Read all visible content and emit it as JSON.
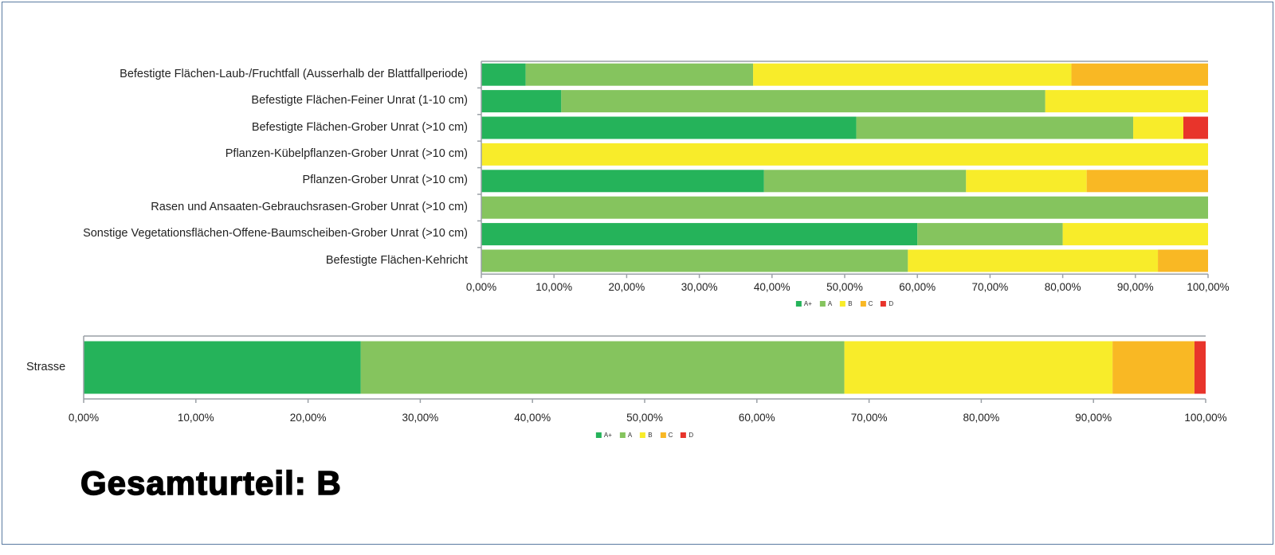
{
  "colors": {
    "A+": "#25b35a",
    "A": "#85c45e",
    "B": "#f8ec2a",
    "C": "#f9b824",
    "D": "#e8342b"
  },
  "chart_data": [
    {
      "type": "bar",
      "orientation": "horizontal-stacked-100",
      "categories": [
        "Befestigte Flächen-Laub-/Fruchtfall (Ausserhalb der Blattfallperiode)",
        "Befestigte Flächen-Feiner Unrat (1-10 cm)",
        "Befestigte Flächen-Grober Unrat (>10 cm)",
        "Pflanzen-Kübelpflanzen-Grober Unrat (>10 cm)",
        "Pflanzen-Grober Unrat (>10 cm)",
        "Rasen und Ansaaten-Gebrauchsrasen-Grober Unrat (>10 cm)",
        "Sonstige Vegetationsflächen-Offene-Baumscheiben-Grober Unrat (>10 cm)",
        "Befestigte Flächen-Kehricht"
      ],
      "series": [
        {
          "name": "A+",
          "values": [
            6.1,
            11.0,
            51.6,
            0,
            38.9,
            0,
            60.0,
            0
          ]
        },
        {
          "name": "A",
          "values": [
            31.3,
            66.6,
            38.1,
            0,
            27.8,
            100,
            20.0,
            58.7
          ]
        },
        {
          "name": "B",
          "values": [
            43.8,
            22.4,
            6.9,
            100,
            16.6,
            0,
            20.0,
            34.4
          ]
        },
        {
          "name": "C",
          "values": [
            18.8,
            0,
            0,
            0,
            16.7,
            0,
            0,
            6.9
          ]
        },
        {
          "name": "D",
          "values": [
            0,
            0,
            3.4,
            0,
            0,
            0,
            0,
            0
          ]
        }
      ],
      "xticks": [
        "0,00%",
        "10,00%",
        "20,00%",
        "30,00%",
        "40,00%",
        "50,00%",
        "60,00%",
        "70,00%",
        "80,00%",
        "90,00%",
        "100,00%"
      ],
      "xlim": [
        0,
        100
      ],
      "legend": [
        "A+",
        "A",
        "B",
        "C",
        "D"
      ],
      "legend_position": "bottom"
    },
    {
      "type": "bar",
      "orientation": "horizontal-stacked-100",
      "categories": [
        "Strasse"
      ],
      "series": [
        {
          "name": "A+",
          "values": [
            24.7
          ]
        },
        {
          "name": "A",
          "values": [
            43.1
          ]
        },
        {
          "name": "B",
          "values": [
            23.9
          ]
        },
        {
          "name": "C",
          "values": [
            7.3
          ]
        },
        {
          "name": "D",
          "values": [
            1.0
          ]
        }
      ],
      "xticks": [
        "0,00%",
        "10,00%",
        "20,00%",
        "30,00%",
        "40,00%",
        "50,00%",
        "60,00%",
        "70,00%",
        "80,00%",
        "90,00%",
        "100,00%"
      ],
      "xlim": [
        0,
        100
      ],
      "legend": [
        "A+",
        "A",
        "B",
        "C",
        "D"
      ],
      "legend_position": "bottom"
    }
  ],
  "verdict": "Gesamturteil: B"
}
